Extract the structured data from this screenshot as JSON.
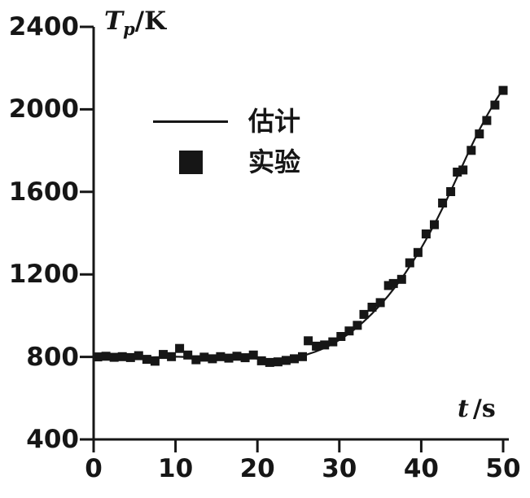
{
  "chart_data": {
    "type": "line",
    "title": "",
    "colors": {
      "ink": "#161616",
      "background": "#ffffff"
    },
    "y_axis": {
      "label_main": "T",
      "label_sub": "p",
      "label_unit": "/K",
      "min": 400,
      "max": 2400,
      "tick_step": 400,
      "ticks": [
        400,
        800,
        1200,
        1600,
        2000,
        2400
      ]
    },
    "x_axis": {
      "label_main": "t",
      "label_unit": "/s",
      "min": 0,
      "max": 50,
      "tick_step": 10,
      "ticks": [
        0,
        10,
        20,
        30,
        40,
        50
      ]
    },
    "legend": [
      {
        "glyph": "line",
        "label": "估计"
      },
      {
        "glyph": "square",
        "label": "实验"
      }
    ],
    "series": [
      {
        "name": "估计",
        "type": "line",
        "points": [
          [
            0,
            800
          ],
          [
            1,
            800
          ],
          [
            2,
            801
          ],
          [
            3,
            800
          ],
          [
            4,
            799
          ],
          [
            5,
            800
          ],
          [
            6,
            799
          ],
          [
            7,
            798
          ],
          [
            8,
            799
          ],
          [
            9,
            800
          ],
          [
            10,
            801
          ],
          [
            11,
            800
          ],
          [
            12,
            799
          ],
          [
            13,
            798
          ],
          [
            14,
            798
          ],
          [
            15,
            799
          ],
          [
            16,
            798
          ],
          [
            17,
            797
          ],
          [
            18,
            797
          ],
          [
            19,
            795
          ],
          [
            20,
            792
          ],
          [
            21,
            789
          ],
          [
            22,
            788
          ],
          [
            23,
            790
          ],
          [
            24,
            794
          ],
          [
            25,
            801
          ],
          [
            26,
            811
          ],
          [
            27,
            824
          ],
          [
            28,
            840
          ],
          [
            29,
            859
          ],
          [
            30,
            882
          ],
          [
            31,
            908
          ],
          [
            32,
            938
          ],
          [
            33,
            972
          ],
          [
            34,
            1010
          ],
          [
            35,
            1052
          ],
          [
            36,
            1098
          ],
          [
            37,
            1148
          ],
          [
            38,
            1203
          ],
          [
            39,
            1263
          ],
          [
            40,
            1328
          ],
          [
            41,
            1398
          ],
          [
            42,
            1473
          ],
          [
            43,
            1553
          ],
          [
            44,
            1638
          ],
          [
            45,
            1725
          ],
          [
            46,
            1812
          ],
          [
            47,
            1893
          ],
          [
            48,
            1968
          ],
          [
            49,
            2037
          ],
          [
            50,
            2100
          ]
        ]
      },
      {
        "name": "实验",
        "type": "scatter",
        "points": [
          [
            0.5,
            800
          ],
          [
            1.5,
            803
          ],
          [
            2.5,
            798
          ],
          [
            3.5,
            801
          ],
          [
            4.5,
            797
          ],
          [
            5.5,
            806
          ],
          [
            6.5,
            788
          ],
          [
            7.5,
            779
          ],
          [
            8.5,
            812
          ],
          [
            9.5,
            801
          ],
          [
            10.5,
            841
          ],
          [
            11.5,
            809
          ],
          [
            12.5,
            786
          ],
          [
            13.5,
            799
          ],
          [
            14.5,
            791
          ],
          [
            15.5,
            801
          ],
          [
            16.5,
            794
          ],
          [
            17.5,
            803
          ],
          [
            18.5,
            796
          ],
          [
            19.5,
            809
          ],
          [
            20.5,
            781
          ],
          [
            21.5,
            773
          ],
          [
            22.5,
            776
          ],
          [
            23.5,
            783
          ],
          [
            24.5,
            791
          ],
          [
            25.5,
            801
          ],
          [
            26.2,
            878
          ],
          [
            27.2,
            852
          ],
          [
            28.2,
            858
          ],
          [
            29.2,
            873
          ],
          [
            30.2,
            899
          ],
          [
            31.2,
            926
          ],
          [
            32.2,
            953
          ],
          [
            33,
            1006
          ],
          [
            34,
            1041
          ],
          [
            35,
            1063
          ],
          [
            36,
            1146
          ],
          [
            36.6,
            1156
          ],
          [
            37.6,
            1176
          ],
          [
            38.6,
            1256
          ],
          [
            39.6,
            1306
          ],
          [
            40.6,
            1396
          ],
          [
            41.6,
            1441
          ],
          [
            42.6,
            1546
          ],
          [
            43.6,
            1601
          ],
          [
            44.4,
            1696
          ],
          [
            45.1,
            1706
          ],
          [
            46.1,
            1801
          ],
          [
            47.1,
            1881
          ],
          [
            48,
            1946
          ],
          [
            49,
            2021
          ],
          [
            50,
            2092
          ]
        ]
      }
    ]
  }
}
